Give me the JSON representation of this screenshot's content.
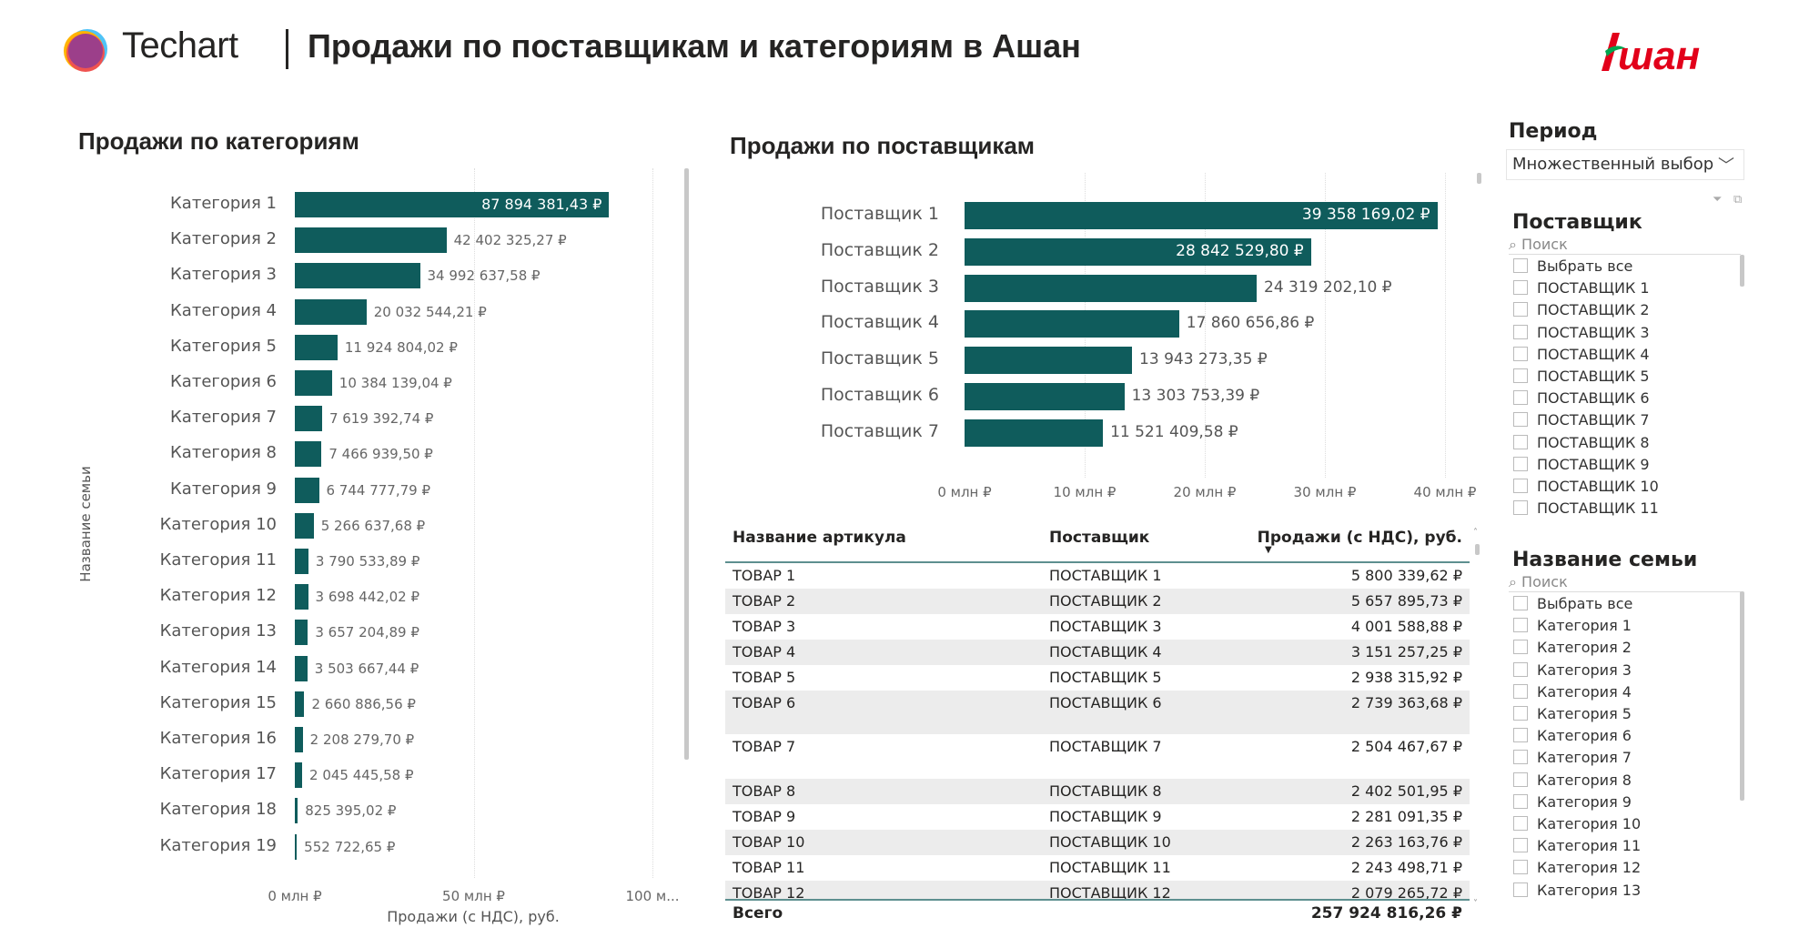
{
  "header": {
    "brand": "Techart",
    "title": "Продажи по поставщикам и категориям в Ашан",
    "client_logo": "Ашан"
  },
  "colors": {
    "bar": "#0f5c5c",
    "accent_line": "#5d8f8f",
    "auchan_red": "#e2001a",
    "auchan_green": "#00a650"
  },
  "categories_chart": {
    "title": "Продажи по категориям",
    "ylabel": "Название семьи",
    "xlabel": "Продажи (с НДС), руб.",
    "ticks": [
      "0 млн ₽",
      "50 млн ₽",
      "100 м..."
    ]
  },
  "suppliers_chart": {
    "title": "Продажи по поставщикам",
    "ticks": [
      "0 млн ₽",
      "10 млн ₽",
      "20 млн ₽",
      "30 млн ₽",
      "40 млн ₽"
    ]
  },
  "chart_data": [
    {
      "type": "bar",
      "title": "Продажи по категориям",
      "xlabel": "Продажи (с НДС), руб.",
      "ylabel": "Название семьи",
      "xlim": [
        0,
        100000000
      ],
      "categories": [
        "Категория 1",
        "Категория 2",
        "Категория 3",
        "Категория 4",
        "Категория 5",
        "Категория 6",
        "Категория 7",
        "Категория 8",
        "Категория 9",
        "Категория 10",
        "Категория 11",
        "Категория 12",
        "Категория 13",
        "Категория 14",
        "Категория 15",
        "Категория 16",
        "Категория 17",
        "Категория 18",
        "Категория 19"
      ],
      "values": [
        87894381.43,
        42402325.27,
        34992637.58,
        20032544.21,
        11924804.02,
        10384139.04,
        7619392.74,
        7466939.5,
        6744777.79,
        5266637.68,
        3790533.89,
        3698442.02,
        3657204.89,
        3503667.44,
        2660886.56,
        2208279.7,
        2045445.58,
        825395.02,
        552722.65
      ],
      "labels": [
        "87 894 381,43 ₽",
        "42 402 325,27 ₽",
        "34 992 637,58 ₽",
        "20 032 544,21 ₽",
        "11 924 804,02 ₽",
        "10 384 139,04 ₽",
        "7 619 392,74 ₽",
        "7 466 939,50 ₽",
        "6 744 777,79 ₽",
        "5 266 637,68 ₽",
        "3 790 533,89 ₽",
        "3 698 442,02 ₽",
        "3 657 204,89 ₽",
        "3 503 667,44 ₽",
        "2 660 886,56 ₽",
        "2 208 279,70 ₽",
        "2 045 445,58 ₽",
        "825 395,02 ₽",
        "552 722,65 ₽"
      ]
    },
    {
      "type": "bar",
      "title": "Продажи по поставщикам",
      "xlim": [
        0,
        40000000
      ],
      "categories": [
        "Поставщик 1",
        "Поставщик 2",
        "Поставщик 3",
        "Поставщик 4",
        "Поставщик 5",
        "Поставщик 6",
        "Поставщик 7"
      ],
      "values": [
        39358169.02,
        28842529.8,
        24319202.1,
        17860656.86,
        13943273.35,
        13303753.39,
        11521409.58
      ],
      "labels": [
        "39 358 169,02 ₽",
        "28 842 529,80 ₽",
        "24 319 202,10 ₽",
        "17 860 656,86 ₽",
        "13 943 273,35 ₽",
        "13 303 753,39 ₽",
        "11 521 409,58 ₽"
      ]
    }
  ],
  "table": {
    "columns": [
      "Название артикула",
      "Поставщик",
      "Продажи (с НДС), руб."
    ],
    "rows": [
      [
        "ТОВАР 1",
        "ПОСТАВЩИК 1",
        "5 800 339,62 ₽"
      ],
      [
        "ТОВАР 2",
        "ПОСТАВЩИК 2",
        "5 657 895,73 ₽"
      ],
      [
        "ТОВАР 3",
        "ПОСТАВЩИК 3",
        "4 001 588,88 ₽"
      ],
      [
        "ТОВАР 4",
        "ПОСТАВЩИК 4",
        "3 151 257,25 ₽"
      ],
      [
        "ТОВАР 5",
        "ПОСТАВЩИК 5",
        "2 938 315,92 ₽"
      ],
      [
        "ТОВАР 6",
        "ПОСТАВЩИК 6",
        "2 739 363,68 ₽"
      ],
      [
        "ТОВАР 7",
        "ПОСТАВЩИК 7",
        "2 504 467,67 ₽"
      ],
      [
        "ТОВАР 8",
        "ПОСТАВЩИК 8",
        "2 402 501,95 ₽"
      ],
      [
        "ТОВАР 9",
        "ПОСТАВЩИК 9",
        "2 281 091,35 ₽"
      ],
      [
        "ТОВАР 10",
        "ПОСТАВЩИК 10",
        "2 263 163,76 ₽"
      ],
      [
        "ТОВАР 11",
        "ПОСТАВЩИК 11",
        "2 243 498,71 ₽"
      ],
      [
        "ТОВАР 12",
        "ПОСТАВЩИК 12",
        "2 079 265,72 ₽"
      ]
    ],
    "total_label": "Всего",
    "total_value": "257 924 816,26 ₽"
  },
  "period": {
    "title": "Период",
    "value": "Множественный выбор"
  },
  "supplier_slicer": {
    "title": "Поставщик",
    "search_placeholder": "Поиск",
    "items": [
      "Выбрать все",
      "ПОСТАВЩИК 1",
      "ПОСТАВЩИК 2",
      "ПОСТАВЩИК 3",
      "ПОСТАВЩИК 4",
      "ПОСТАВЩИК 5",
      "ПОСТАВЩИК 6",
      "ПОСТАВЩИК 7",
      "ПОСТАВЩИК 8",
      "ПОСТАВЩИК 9",
      "ПОСТАВЩИК 10",
      "ПОСТАВЩИК 11"
    ]
  },
  "family_slicer": {
    "title": "Название семьи",
    "search_placeholder": "Поиск",
    "items": [
      "Выбрать все",
      "Категория 1",
      "Категория 2",
      "Категория 3",
      "Категория 4",
      "Категория 5",
      "Категория 6",
      "Категория 7",
      "Категория 8",
      "Категория 9",
      "Категория 10",
      "Категория 11",
      "Категория 12",
      "Категория 13"
    ]
  }
}
